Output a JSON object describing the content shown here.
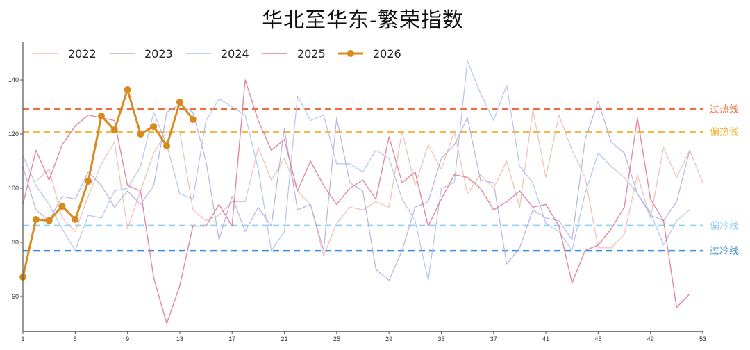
{
  "chart_data": {
    "type": "line",
    "title": "华北至华东-繁荣指数",
    "xlabel": "",
    "ylabel": "",
    "xlim": [
      1,
      53
    ],
    "ylim": [
      47,
      155
    ],
    "x_ticks": [
      1,
      5,
      9,
      13,
      17,
      21,
      25,
      29,
      33,
      37,
      41,
      45,
      49,
      53
    ],
    "y_ticks": [
      60,
      80,
      100,
      120,
      140
    ],
    "grid": false,
    "legend_position": "top-left",
    "legend": [
      "2022",
      "2023",
      "2024",
      "2025",
      "2026"
    ],
    "reference_lines": [
      {
        "name": "过热线",
        "value": 129.2,
        "color": "#f26b3a"
      },
      {
        "name": "偏热线",
        "value": 120.8,
        "color": "#f5b841"
      },
      {
        "name": "偏冷线",
        "value": 86.2,
        "color": "#8fd0f5"
      },
      {
        "name": "过冷线",
        "value": 76.9,
        "color": "#3d8fe0"
      }
    ],
    "series": [
      {
        "name": "2022",
        "color": "#f0b8a8",
        "width": 1.2,
        "markers": false,
        "x": [
          2,
          3,
          4,
          5,
          6,
          7,
          8,
          9,
          10,
          11,
          12,
          13,
          14,
          15,
          16,
          17,
          18,
          19,
          20,
          21,
          22,
          23,
          24,
          25,
          26,
          27,
          28,
          29,
          30,
          31,
          32,
          33,
          34,
          35,
          36,
          37,
          38,
          39,
          40,
          41,
          42,
          43,
          44,
          45,
          46,
          47,
          48,
          49,
          50,
          51,
          52,
          53
        ],
        "values": [
          102.5,
          107,
          89,
          84,
          97,
          109,
          117,
          85,
          99,
          113,
          121,
          121,
          92,
          88,
          90,
          95,
          95,
          115,
          103,
          111,
          99,
          94,
          75,
          87,
          93,
          92,
          95,
          93,
          121,
          101,
          116,
          107,
          121,
          98,
          105,
          100,
          110,
          93,
          129,
          104,
          127,
          114,
          104,
          78,
          78,
          83,
          105,
          89,
          115,
          104,
          114,
          102
        ]
      },
      {
        "name": "2023",
        "color": "#b0a8e0",
        "width": 1.2,
        "markers": false,
        "x": [
          1,
          2,
          3,
          4,
          5,
          6,
          7,
          8,
          9,
          10,
          11,
          12,
          13,
          14,
          15,
          16,
          17,
          18,
          19,
          20,
          21,
          22,
          23,
          24,
          25,
          26,
          27,
          28,
          29,
          30,
          31,
          32,
          33,
          34,
          35,
          36,
          37,
          38,
          39,
          40,
          41,
          42,
          43,
          44,
          45,
          46,
          47,
          48,
          49,
          50,
          51,
          52
        ],
        "values": [
          108,
          92,
          88,
          97,
          96,
          106,
          101,
          93,
          99,
          94,
          101,
          128,
          131,
          128,
          110,
          81,
          97,
          84,
          93,
          86,
          122,
          92,
          94,
          77,
          126,
          102,
          99,
          70,
          66,
          77,
          93,
          95,
          111,
          116,
          126,
          103,
          102,
          72,
          78,
          92,
          89,
          88,
          81,
          118,
          132,
          117,
          113,
          98,
          90,
          88,
          95,
          114
        ]
      },
      {
        "name": "2024",
        "color": "#a8c0ec",
        "width": 1.2,
        "markers": false,
        "x": [
          1,
          2,
          3,
          4,
          5,
          6,
          7,
          8,
          9,
          10,
          11,
          12,
          13,
          14,
          15,
          16,
          17,
          18,
          19,
          20,
          21,
          22,
          23,
          24,
          25,
          26,
          27,
          28,
          29,
          30,
          31,
          32,
          33,
          34,
          35,
          36,
          37,
          38,
          39,
          40,
          41,
          42,
          43,
          44,
          45,
          46,
          47,
          48,
          49,
          50,
          51,
          52
        ],
        "values": [
          112,
          101,
          94,
          85,
          77,
          90,
          89,
          99,
          100,
          108,
          128,
          116,
          98,
          96,
          125,
          133,
          130,
          127,
          107,
          77,
          84,
          134,
          125,
          127,
          109,
          109,
          106,
          114,
          111,
          96,
          88,
          66,
          100,
          102,
          147,
          135,
          125,
          138,
          108,
          102,
          87,
          84,
          77,
          98,
          113,
          108,
          104,
          98,
          91,
          79,
          88,
          92
        ]
      },
      {
        "name": "2025",
        "color": "#e07a9a",
        "width": 1.4,
        "markers": false,
        "x": [
          1,
          2,
          3,
          4,
          5,
          6,
          7,
          8,
          9,
          10,
          11,
          12,
          13,
          14,
          15,
          16,
          17,
          18,
          19,
          20,
          21,
          22,
          23,
          24,
          25,
          26,
          27,
          28,
          29,
          30,
          31,
          32,
          33,
          34,
          35,
          36,
          37,
          38,
          39,
          40,
          41,
          42,
          43,
          44,
          45,
          46,
          47,
          48,
          49,
          50,
          51,
          52
        ],
        "values": [
          94,
          114,
          103,
          116,
          123,
          127,
          126,
          125,
          101,
          99,
          67,
          50,
          64,
          86,
          86,
          94,
          86,
          140,
          125,
          114,
          118,
          99,
          110,
          101,
          94,
          100,
          103,
          96,
          119,
          102,
          106,
          86,
          96,
          105,
          104,
          100,
          92,
          95,
          99,
          93,
          94,
          86,
          65,
          77,
          79,
          85,
          93,
          126,
          96,
          88,
          56,
          61
        ]
      },
      {
        "name": "2026",
        "color": "#d98a1e",
        "width": 3,
        "markers": true,
        "x": [
          1,
          2,
          3,
          4,
          5,
          6,
          7,
          8,
          9,
          10,
          11,
          12,
          13,
          14
        ],
        "values": [
          67.2,
          88.5,
          88.0,
          93.3,
          88.5,
          102.6,
          126.7,
          121.5,
          136.4,
          120.0,
          122.8,
          115.6,
          131.8,
          125.4
        ]
      }
    ]
  }
}
